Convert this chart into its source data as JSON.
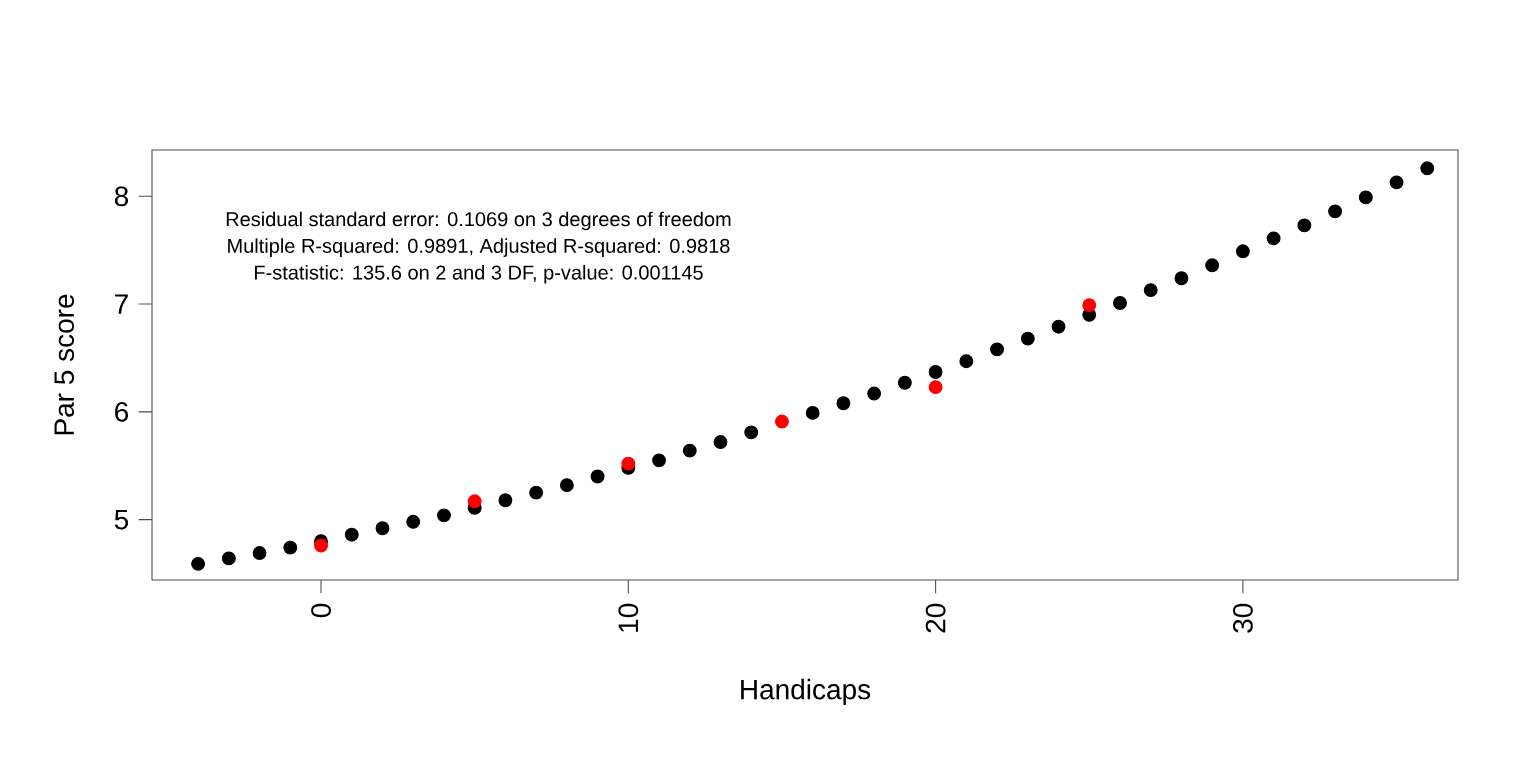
{
  "chart_data": {
    "type": "scatter",
    "xlabel": "Handicaps",
    "ylabel": "Par 5 score",
    "annotations": [
      "Residual standard error: 0.1069 on 3 degrees of freedom",
      "Multiple R-squared:  0.9891, Adjusted R-squared:  0.9818",
      "F-statistic: 135.6 on 2 and 3 DF,  p-value: 0.001145"
    ],
    "series": [
      {
        "color": "#000000",
        "x": [
          -4,
          -3,
          -2,
          -1,
          0,
          1,
          2,
          3,
          4,
          5,
          6,
          7,
          8,
          9,
          10,
          11,
          12,
          13,
          14,
          15,
          16,
          17,
          18,
          19,
          20,
          21,
          22,
          23,
          24,
          25,
          26,
          27,
          28,
          29,
          30,
          31,
          32,
          33,
          34,
          35,
          36
        ],
        "values": [
          4.59,
          4.64,
          4.69,
          4.74,
          4.8,
          4.86,
          4.92,
          4.98,
          5.04,
          5.11,
          5.18,
          5.25,
          5.32,
          5.4,
          5.48,
          5.55,
          5.64,
          5.72,
          5.81,
          null,
          5.99,
          6.08,
          6.17,
          6.27,
          6.37,
          6.47,
          6.58,
          6.68,
          6.79,
          6.9,
          7.01,
          7.13,
          7.24,
          7.36,
          7.49,
          7.61,
          7.73,
          7.86,
          7.99,
          8.13,
          8.26
        ]
      },
      {
        "color": "#ff0000",
        "x": [
          0,
          5,
          10,
          15,
          20,
          25
        ],
        "values": [
          4.76,
          5.17,
          5.52,
          5.91,
          6.23,
          6.99
        ]
      }
    ],
    "xlim": [
      -5.5,
      37.0
    ],
    "ylim": [
      4.44,
      8.43
    ],
    "xticks": [
      0,
      10,
      20,
      30
    ],
    "yticks": [
      5,
      6,
      7,
      8
    ],
    "marker": "circle",
    "grid": false
  }
}
